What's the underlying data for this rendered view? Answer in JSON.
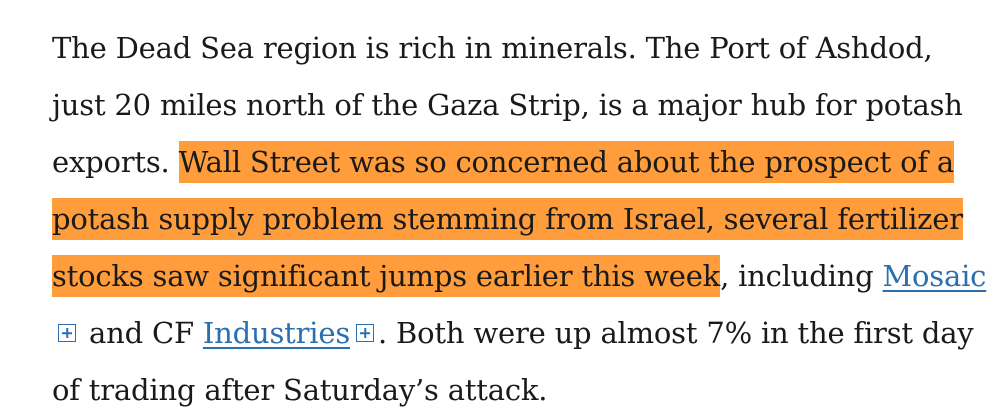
{
  "paragraph": {
    "text_1": "The Dead Sea region is rich in minerals. The Port of Ashdod, just 20 miles north of the Gaza Strip, is a major hub for potash exports. ",
    "highlighted": "Wall Street was so concerned about the prospect of a potash supply problem stemming from Israel, several fertilizer stocks saw significant jumps earlier this week",
    "text_2": ", including ",
    "link_1": "Mosaic",
    "text_3": " and CF ",
    "link_2": "Industries",
    "text_4": ". Both were up almost 7% in the first day of trading after Saturday’s attack."
  },
  "icons": {
    "expand": "plus-square-icon"
  },
  "colors": {
    "highlight": "#ff9c3b",
    "link": "#2a6fb0",
    "text": "#1a1a1a"
  }
}
